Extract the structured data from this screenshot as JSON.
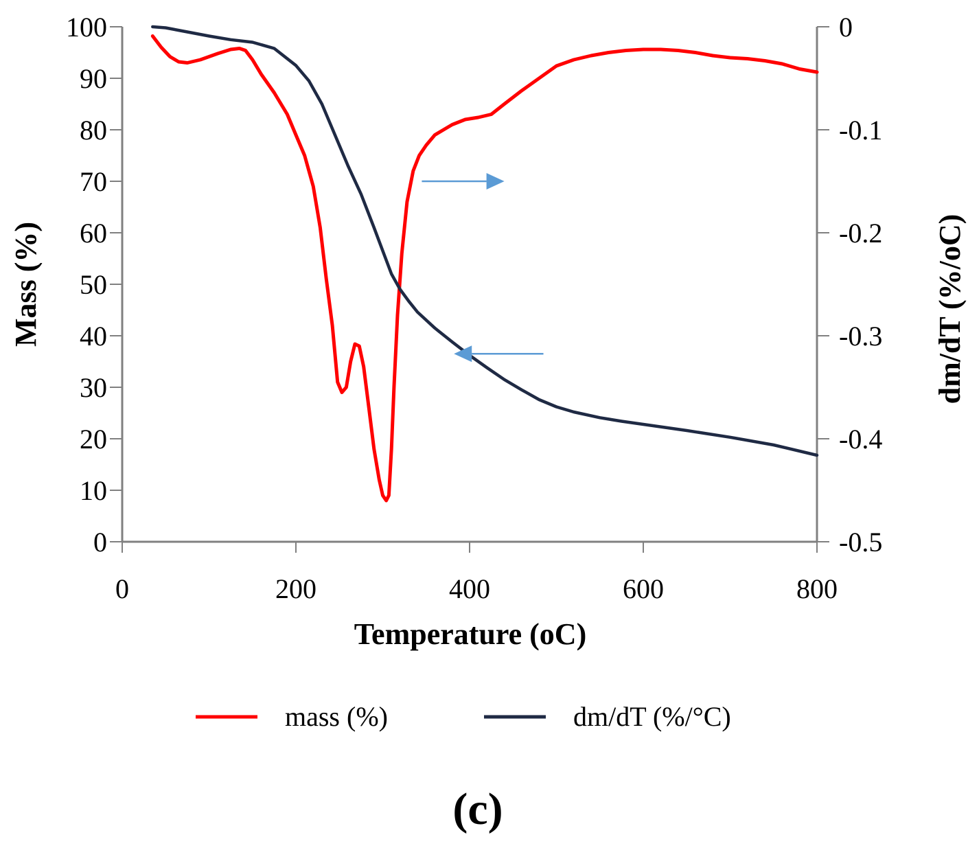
{
  "chart_data": {
    "type": "line",
    "xlabel": "Temperature (oC)",
    "ylabel_left": "Mass (%)",
    "ylabel_right": "dm/dT (%/oC)",
    "xlim": [
      0,
      800
    ],
    "ylim_left": [
      0,
      100
    ],
    "ylim_right": [
      -0.5,
      0
    ],
    "x_ticks": [
      "0",
      "200",
      "400",
      "600",
      "800"
    ],
    "y_left_ticks": [
      "0",
      "10",
      "20",
      "30",
      "40",
      "50",
      "60",
      "70",
      "80",
      "90",
      "100"
    ],
    "y_right_ticks": [
      "-0.5",
      "-0.4",
      "-0.3",
      "-0.2",
      "-0.1",
      "0"
    ],
    "grid": false,
    "legend_position": "bottom",
    "panel_label": "(c)",
    "series": [
      {
        "name": "mass (%)",
        "color": "#ff0000",
        "axis": "right",
        "x": [
          35,
          45,
          55,
          65,
          75,
          90,
          110,
          125,
          135,
          142,
          150,
          160,
          175,
          190,
          200,
          210,
          220,
          228,
          235,
          242,
          248,
          253,
          258,
          263,
          268,
          273,
          278,
          284,
          290,
          296,
          300,
          304,
          307,
          310,
          313,
          317,
          322,
          328,
          335,
          342,
          350,
          360,
          370,
          380,
          395,
          410,
          425,
          440,
          460,
          480,
          500,
          520,
          540,
          560,
          580,
          600,
          620,
          640,
          660,
          680,
          700,
          720,
          740,
          760,
          780,
          800
        ],
        "values": [
          -0.009,
          -0.02,
          -0.029,
          -0.034,
          -0.035,
          -0.032,
          -0.026,
          -0.022,
          -0.021,
          -0.023,
          -0.032,
          -0.046,
          -0.064,
          -0.085,
          -0.105,
          -0.125,
          -0.155,
          -0.195,
          -0.245,
          -0.29,
          -0.345,
          -0.355,
          -0.35,
          -0.325,
          -0.308,
          -0.31,
          -0.33,
          -0.37,
          -0.41,
          -0.44,
          -0.455,
          -0.46,
          -0.455,
          -0.41,
          -0.35,
          -0.28,
          -0.22,
          -0.17,
          -0.14,
          -0.125,
          -0.115,
          -0.105,
          -0.1,
          -0.095,
          -0.09,
          -0.088,
          -0.085,
          -0.075,
          -0.062,
          -0.05,
          -0.038,
          -0.032,
          -0.028,
          -0.025,
          -0.023,
          -0.022,
          -0.022,
          -0.023,
          -0.025,
          -0.028,
          -0.03,
          -0.031,
          -0.033,
          -0.036,
          -0.041,
          -0.044
        ]
      },
      {
        "name": "dm/dT (%/°C)",
        "color": "#1f2a44",
        "axis": "left",
        "x": [
          35,
          50,
          75,
          100,
          125,
          150,
          175,
          200,
          215,
          230,
          245,
          260,
          275,
          290,
          300,
          310,
          320,
          330,
          340,
          360,
          380,
          400,
          420,
          440,
          460,
          480,
          500,
          520,
          550,
          575,
          600,
          650,
          700,
          750,
          800
        ],
        "values": [
          100,
          99.8,
          99,
          98.2,
          97.5,
          97,
          95.8,
          92.5,
          89.5,
          85,
          79,
          73,
          67.5,
          61,
          56.5,
          52,
          49,
          46.7,
          44.6,
          41.5,
          38.8,
          36.2,
          33.8,
          31.5,
          29.5,
          27.6,
          26.2,
          25.2,
          24.1,
          23.4,
          22.8,
          21.6,
          20.3,
          18.8,
          16.8
        ]
      }
    ],
    "annotations": [
      {
        "type": "arrow",
        "direction": "right",
        "x_from": 345,
        "x_to": 440,
        "y_left": 70,
        "color": "#5b9bd5"
      },
      {
        "type": "arrow",
        "direction": "left",
        "x_from": 485,
        "x_to": 382,
        "y_left": 36.5,
        "color": "#5b9bd5"
      }
    ]
  }
}
